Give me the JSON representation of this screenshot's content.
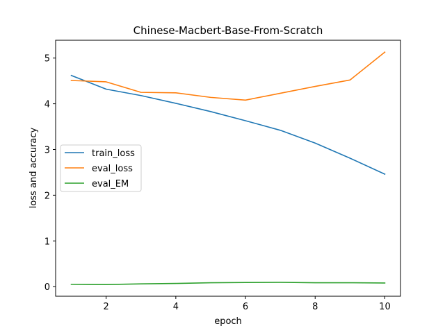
{
  "chart_data": {
    "type": "line",
    "title": "Chinese-Macbert-Base-From-Scratch",
    "xlabel": "epoch",
    "ylabel": "loss and accuracy",
    "x": [
      1,
      2,
      3,
      4,
      5,
      6,
      7,
      8,
      9,
      10
    ],
    "xlim": [
      0.55,
      10.45
    ],
    "ylim": [
      -0.21,
      5.39
    ],
    "xticks": [
      2,
      4,
      6,
      8,
      10
    ],
    "yticks": [
      0,
      1,
      2,
      3,
      4,
      5
    ],
    "grid": false,
    "legend_position": "center-left",
    "series": [
      {
        "name": "train_loss",
        "color": "#1f77b4",
        "values": [
          4.62,
          4.32,
          4.18,
          4.01,
          3.83,
          3.63,
          3.42,
          3.14,
          2.81,
          2.46
        ]
      },
      {
        "name": "eval_loss",
        "color": "#ff7f0e",
        "values": [
          4.51,
          4.48,
          4.25,
          4.24,
          4.14,
          4.08,
          4.23,
          4.38,
          4.52,
          5.13
        ]
      },
      {
        "name": "eval_EM",
        "color": "#2ca02c",
        "values": [
          0.05,
          0.045,
          0.06,
          0.07,
          0.085,
          0.09,
          0.095,
          0.085,
          0.085,
          0.08
        ]
      }
    ]
  }
}
